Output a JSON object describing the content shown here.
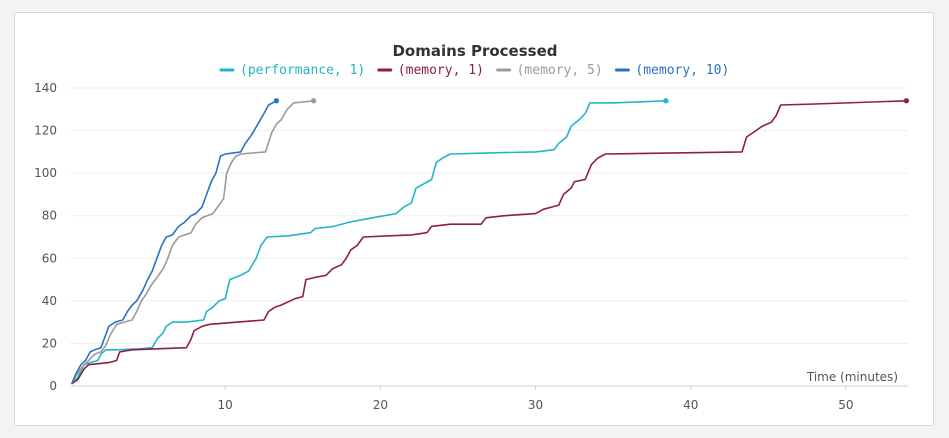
{
  "chart_data": {
    "type": "line",
    "title": "Domains Processed",
    "xlabel": "Time (minutes)",
    "ylabel": "",
    "xlim": [
      0,
      54
    ],
    "ylim": [
      0,
      140
    ],
    "x_ticks": [
      10,
      20,
      30,
      40,
      50
    ],
    "y_ticks": [
      0,
      20,
      40,
      60,
      80,
      100,
      120,
      140
    ],
    "grid": "horizontal",
    "legend_position": "top",
    "series": [
      {
        "name": "(performance, 1)",
        "color": "#22b5c8",
        "points": [
          [
            0.1,
            1
          ],
          [
            0.5,
            4
          ],
          [
            0.9,
            10
          ],
          [
            1.3,
            11
          ],
          [
            1.8,
            12
          ],
          [
            2.0,
            15
          ],
          [
            2.3,
            17
          ],
          [
            3.0,
            17
          ],
          [
            4.5,
            17.5
          ],
          [
            5.3,
            18
          ],
          [
            5.6,
            22
          ],
          [
            6.0,
            25
          ],
          [
            6.2,
            28
          ],
          [
            6.6,
            30
          ],
          [
            7.5,
            30
          ],
          [
            8.6,
            31
          ],
          [
            8.8,
            35
          ],
          [
            9.2,
            37
          ],
          [
            9.6,
            40
          ],
          [
            10.0,
            41
          ],
          [
            10.3,
            50
          ],
          [
            11.0,
            52
          ],
          [
            11.5,
            54
          ],
          [
            12.0,
            60
          ],
          [
            12.3,
            66
          ],
          [
            12.7,
            70
          ],
          [
            14.0,
            70.5
          ],
          [
            15.5,
            72
          ],
          [
            15.8,
            74
          ],
          [
            17.0,
            75
          ],
          [
            18.0,
            77
          ],
          [
            19.5,
            79
          ],
          [
            21.0,
            81
          ],
          [
            21.5,
            84
          ],
          [
            22.0,
            86
          ],
          [
            22.3,
            93
          ],
          [
            22.8,
            95
          ],
          [
            23.3,
            97
          ],
          [
            23.6,
            105
          ],
          [
            24.0,
            107
          ],
          [
            24.5,
            109
          ],
          [
            27.0,
            109.5
          ],
          [
            30.0,
            110
          ],
          [
            31.2,
            111
          ],
          [
            31.5,
            114
          ],
          [
            32.0,
            117
          ],
          [
            32.3,
            122
          ],
          [
            32.8,
            125
          ],
          [
            33.2,
            128
          ],
          [
            33.5,
            133
          ],
          [
            35.0,
            133
          ],
          [
            38.4,
            134
          ]
        ]
      },
      {
        "name": "(memory, 1)",
        "color": "#8d1e48",
        "points": [
          [
            0.1,
            1
          ],
          [
            0.5,
            3
          ],
          [
            0.9,
            8
          ],
          [
            1.2,
            10
          ],
          [
            2.5,
            11
          ],
          [
            3.0,
            12
          ],
          [
            3.2,
            16
          ],
          [
            4.0,
            17
          ],
          [
            7.5,
            18
          ],
          [
            7.8,
            22
          ],
          [
            8.0,
            26
          ],
          [
            8.5,
            28
          ],
          [
            9.0,
            29
          ],
          [
            12.5,
            31
          ],
          [
            12.8,
            35
          ],
          [
            13.2,
            37
          ],
          [
            13.6,
            38
          ],
          [
            14.5,
            41
          ],
          [
            15.0,
            42
          ],
          [
            15.2,
            50
          ],
          [
            15.8,
            51
          ],
          [
            16.5,
            52
          ],
          [
            16.9,
            55
          ],
          [
            17.5,
            57
          ],
          [
            17.8,
            60
          ],
          [
            18.1,
            64
          ],
          [
            18.5,
            66
          ],
          [
            18.9,
            70
          ],
          [
            22.0,
            71
          ],
          [
            23.0,
            72
          ],
          [
            23.3,
            75
          ],
          [
            24.5,
            76
          ],
          [
            26.5,
            76
          ],
          [
            26.8,
            79
          ],
          [
            28.0,
            80
          ],
          [
            30.0,
            81
          ],
          [
            30.5,
            83
          ],
          [
            31.5,
            85
          ],
          [
            31.8,
            90
          ],
          [
            32.3,
            93
          ],
          [
            32.5,
            96
          ],
          [
            33.2,
            97
          ],
          [
            33.6,
            104
          ],
          [
            34.0,
            107
          ],
          [
            34.5,
            109
          ],
          [
            43.3,
            110
          ],
          [
            43.6,
            117
          ],
          [
            44.2,
            120
          ],
          [
            44.6,
            122
          ],
          [
            45.2,
            124
          ],
          [
            45.5,
            127
          ],
          [
            45.8,
            132
          ],
          [
            48.0,
            132.5
          ],
          [
            53.9,
            134
          ]
        ]
      },
      {
        "name": "(memory, 5)",
        "color": "#9b9b9b",
        "points": [
          [
            0.1,
            1
          ],
          [
            0.4,
            5
          ],
          [
            0.8,
            9
          ],
          [
            1.2,
            12
          ],
          [
            1.6,
            15
          ],
          [
            2.0,
            16
          ],
          [
            2.3,
            19
          ],
          [
            2.6,
            24
          ],
          [
            3.0,
            29
          ],
          [
            3.5,
            30
          ],
          [
            4.0,
            31
          ],
          [
            4.3,
            35
          ],
          [
            4.6,
            40
          ],
          [
            4.9,
            43
          ],
          [
            5.2,
            47
          ],
          [
            5.5,
            50
          ],
          [
            5.8,
            53
          ],
          [
            6.0,
            55
          ],
          [
            6.3,
            60
          ],
          [
            6.6,
            66
          ],
          [
            7.0,
            70
          ],
          [
            7.4,
            71
          ],
          [
            7.8,
            72
          ],
          [
            8.1,
            76
          ],
          [
            8.5,
            79
          ],
          [
            9.2,
            81
          ],
          [
            9.6,
            85
          ],
          [
            9.9,
            88
          ],
          [
            10.1,
            100
          ],
          [
            10.4,
            105
          ],
          [
            10.7,
            108
          ],
          [
            11.0,
            109
          ],
          [
            12.6,
            110
          ],
          [
            13.0,
            119
          ],
          [
            13.3,
            123
          ],
          [
            13.6,
            125
          ],
          [
            14.0,
            130
          ],
          [
            14.4,
            133
          ],
          [
            15.7,
            134
          ]
        ]
      },
      {
        "name": "(memory, 10)",
        "color": "#2a72c6",
        "points": [
          [
            0.1,
            1
          ],
          [
            0.4,
            6
          ],
          [
            0.7,
            10
          ],
          [
            1.0,
            12
          ],
          [
            1.3,
            16
          ],
          [
            1.6,
            17
          ],
          [
            2.0,
            18
          ],
          [
            2.2,
            22
          ],
          [
            2.5,
            28
          ],
          [
            2.9,
            30
          ],
          [
            3.4,
            31
          ],
          [
            3.7,
            35
          ],
          [
            4.0,
            38
          ],
          [
            4.3,
            40
          ],
          [
            4.7,
            45
          ],
          [
            5.0,
            50
          ],
          [
            5.3,
            54
          ],
          [
            5.6,
            60
          ],
          [
            5.9,
            66
          ],
          [
            6.2,
            70
          ],
          [
            6.6,
            71
          ],
          [
            7.0,
            75
          ],
          [
            7.4,
            77
          ],
          [
            7.8,
            80
          ],
          [
            8.1,
            81
          ],
          [
            8.5,
            84
          ],
          [
            8.8,
            90
          ],
          [
            9.1,
            96
          ],
          [
            9.4,
            100
          ],
          [
            9.7,
            108
          ],
          [
            10.0,
            109
          ],
          [
            11.0,
            110
          ],
          [
            11.3,
            114
          ],
          [
            11.7,
            118
          ],
          [
            12.1,
            123
          ],
          [
            12.5,
            128
          ],
          [
            12.8,
            132
          ],
          [
            13.3,
            134
          ]
        ]
      }
    ]
  }
}
